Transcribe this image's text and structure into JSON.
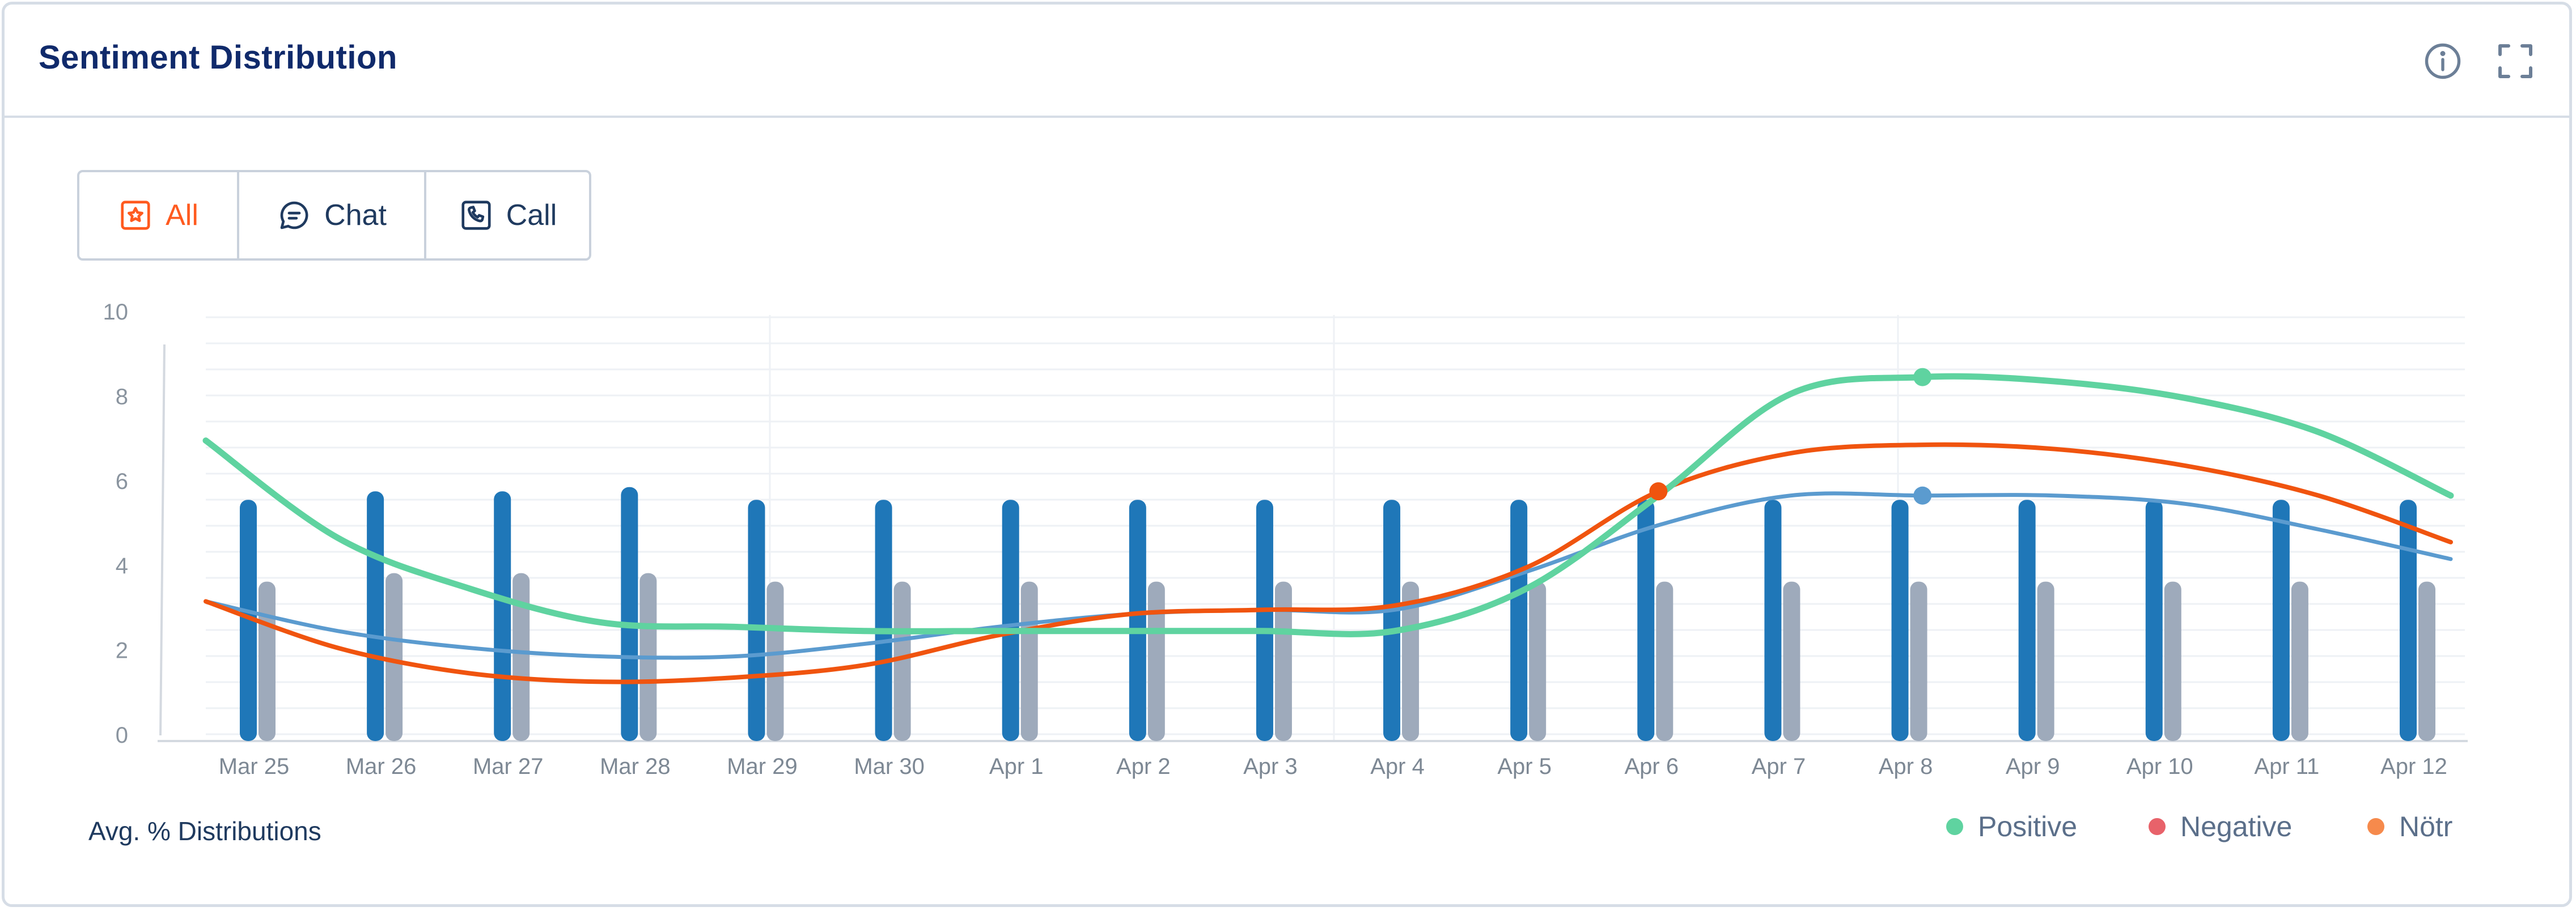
{
  "header": {
    "title": "Sentiment Distribution",
    "info_icon": "info-icon",
    "expand_icon": "expand-icon"
  },
  "filters": {
    "tabs": [
      {
        "label": "All",
        "icon": "star-box-icon",
        "active": true
      },
      {
        "label": "Chat",
        "icon": "chat-bubble-icon",
        "active": false
      },
      {
        "label": "Call",
        "icon": "phone-icon",
        "active": false
      }
    ]
  },
  "footer": {
    "label": "Avg. % Distributions"
  },
  "legend": [
    {
      "label": "Positive",
      "color": "#5fd3a0"
    },
    {
      "label": "Negative",
      "color": "#e8626a"
    },
    {
      "label": "Nötr",
      "color": "#f68a4c"
    }
  ],
  "colors": {
    "accent": "#ff5a1f",
    "bar_primary": "#1f77b8",
    "bar_secondary": "#9eaabb",
    "line_positive": "#5fd3a0",
    "line_negative": "#f0540f",
    "line_neutral": "#5b9bcf"
  },
  "chart_data": {
    "type": "bar",
    "categories": [
      "Mar 25",
      "Mar 26",
      "Mar 27",
      "Mar 28",
      "Mar 29",
      "Mar 30",
      "Apr 1",
      "Apr 2",
      "Apr 3",
      "Apr 4",
      "Apr 5",
      "Apr 6",
      "Apr 7",
      "Apr 8",
      "Apr 9",
      "Apr 10",
      "Apr 11",
      "Apr 12"
    ],
    "ylim": [
      0,
      10
    ],
    "yticks": [
      0,
      2,
      4,
      6,
      8,
      10
    ],
    "grid": true,
    "legend_position": "bottom-right",
    "bar_series": [
      {
        "values": [
          5.7,
          5.9,
          5.9,
          6.0,
          5.7,
          5.7,
          5.7,
          5.7,
          5.7,
          5.7,
          5.7,
          5.7,
          5.7,
          5.7,
          5.7,
          5.7,
          5.7,
          5.7
        ]
      },
      {
        "values": [
          3.7,
          3.9,
          3.9,
          3.9,
          3.7,
          3.7,
          3.7,
          3.7,
          3.7,
          3.7,
          3.7,
          3.7,
          3.7,
          3.7,
          3.7,
          3.7,
          3.7,
          3.7
        ]
      }
    ],
    "series": [
      {
        "name": "Positive",
        "values": [
          7.1,
          4.8,
          3.6,
          2.8,
          2.7,
          2.6,
          2.6,
          2.6,
          2.6,
          2.6,
          3.6,
          5.8,
          8.2,
          8.6,
          8.5,
          8.1,
          7.3,
          5.8
        ]
      },
      {
        "name": "Negative",
        "values": [
          3.3,
          2.2,
          1.6,
          1.4,
          1.5,
          1.8,
          2.5,
          3.0,
          3.1,
          3.2,
          4.1,
          5.9,
          6.8,
          7.0,
          6.9,
          6.5,
          5.8,
          4.7
        ]
      },
      {
        "name": "Nötr",
        "values": [
          3.3,
          2.6,
          2.2,
          2.0,
          2.0,
          2.3,
          2.7,
          3.0,
          3.1,
          3.1,
          4.0,
          5.1,
          5.8,
          5.8,
          5.8,
          5.6,
          5.0,
          4.3
        ]
      }
    ],
    "markers": [
      {
        "series": "Negative",
        "x": "Apr 6",
        "y": 5.9
      },
      {
        "series": "Positive",
        "x": "Apr 8",
        "y": 8.6
      },
      {
        "series": "Nötr",
        "x": "Apr 8",
        "y": 5.8
      }
    ]
  }
}
